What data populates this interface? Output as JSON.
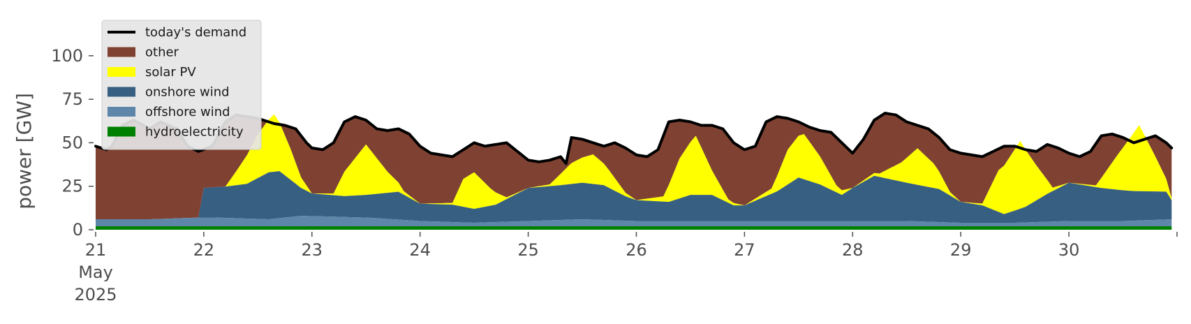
{
  "chart_data": {
    "type": "area",
    "title": "",
    "xlabel": "",
    "ylabel": "power [GW]",
    "x_unit": "days",
    "x_range_days": [
      21,
      31
    ],
    "ylim": [
      0,
      120
    ],
    "yticks": [
      0,
      25,
      50,
      75,
      100
    ],
    "xticks": [
      {
        "day": 21,
        "label": "21",
        "sublabels": [
          "May",
          "2025"
        ]
      },
      {
        "day": 22,
        "label": "22",
        "sublabels": []
      },
      {
        "day": 23,
        "label": "23",
        "sublabels": []
      },
      {
        "day": 24,
        "label": "24",
        "sublabels": []
      },
      {
        "day": 25,
        "label": "25",
        "sublabels": []
      },
      {
        "day": 26,
        "label": "26",
        "sublabels": []
      },
      {
        "day": 27,
        "label": "27",
        "sublabels": []
      },
      {
        "day": 28,
        "label": "28",
        "sublabels": []
      },
      {
        "day": 29,
        "label": "29",
        "sublabels": []
      },
      {
        "day": 30,
        "label": "30",
        "sublabels": []
      }
    ],
    "grid": false,
    "legend_position": "top-left",
    "legend": [
      {
        "name": "today's demand",
        "kind": "line",
        "color": "#000000"
      },
      {
        "name": "other",
        "kind": "patch",
        "color": "#7f4232"
      },
      {
        "name": "solar PV",
        "kind": "patch",
        "color": "#ffff00"
      },
      {
        "name": "onshore wind",
        "kind": "patch",
        "color": "#375f81"
      },
      {
        "name": "offshore wind",
        "kind": "patch",
        "color": "#5e86a8"
      },
      {
        "name": "hydroelectricity",
        "kind": "patch",
        "color": "#008000"
      }
    ],
    "stack_order": [
      "hydroelectricity",
      "offshore wind",
      "onshore wind",
      "solar PV",
      "other"
    ],
    "series": [
      {
        "name": "today's demand",
        "kind": "line",
        "color": "#000000",
        "x": [
          21.0,
          21.1,
          21.15,
          21.25,
          21.35,
          21.5,
          21.6,
          21.75,
          21.85,
          21.95,
          22.08,
          22.2,
          22.3,
          22.5,
          22.65,
          22.75,
          22.85,
          22.95,
          23.0,
          23.1,
          23.2,
          23.3,
          23.4,
          23.5,
          23.6,
          23.7,
          23.8,
          23.9,
          24.0,
          24.1,
          24.2,
          24.3,
          24.4,
          24.5,
          24.6,
          24.7,
          24.8,
          24.9,
          25.0,
          25.1,
          25.2,
          25.3,
          25.35,
          25.4,
          25.5,
          25.6,
          25.7,
          25.8,
          25.9,
          26.0,
          26.1,
          26.2,
          26.3,
          26.4,
          26.5,
          26.6,
          26.7,
          26.8,
          26.9,
          27.0,
          27.1,
          27.2,
          27.3,
          27.4,
          27.5,
          27.6,
          27.7,
          27.8,
          27.9,
          28.0,
          28.1,
          28.2,
          28.3,
          28.4,
          28.5,
          28.6,
          28.7,
          28.8,
          28.9,
          29.0,
          29.1,
          29.2,
          29.3,
          29.4,
          29.5,
          29.6,
          29.7,
          29.8,
          29.9,
          30.0,
          30.1,
          30.2,
          30.3,
          30.4,
          30.5,
          30.6,
          30.7,
          30.8,
          30.9,
          30.95
        ],
        "values": [
          48,
          46,
          48,
          60,
          63,
          58,
          62,
          58,
          48,
          45,
          48,
          62,
          66,
          64,
          61,
          60,
          58,
          50,
          47,
          46,
          50,
          62,
          65,
          63,
          58,
          57,
          58,
          55,
          48,
          44,
          43,
          42,
          46,
          50,
          48,
          49,
          50,
          45,
          40,
          39,
          40,
          42,
          38,
          53,
          52,
          50,
          48,
          50,
          47,
          43,
          42,
          46,
          62,
          63,
          62,
          60,
          60,
          58,
          50,
          46,
          48,
          62,
          65,
          64,
          62,
          59,
          57,
          56,
          50,
          44,
          52,
          63,
          67,
          66,
          62,
          60,
          58,
          53,
          46,
          44,
          43,
          42,
          45,
          48,
          48,
          46,
          45,
          49,
          47,
          44,
          42,
          45,
          54,
          55,
          53,
          50,
          52,
          54,
          50,
          47
        ]
      },
      {
        "name": "hydroelectricity",
        "kind": "area",
        "color": "#008000",
        "x": [
          21.0,
          22.0,
          23.0,
          24.0,
          25.0,
          26.0,
          27.0,
          28.0,
          29.0,
          30.0,
          30.95
        ],
        "values": [
          2,
          2,
          2,
          2,
          2,
          2,
          2,
          2,
          2,
          2,
          2
        ]
      },
      {
        "name": "offshore wind",
        "kind": "area",
        "color": "#5e86a8",
        "x": [
          21.0,
          21.5,
          21.95,
          22.1,
          22.6,
          22.9,
          23.5,
          24.0,
          24.5,
          25.0,
          25.5,
          26.0,
          26.5,
          27.0,
          27.5,
          28.0,
          28.5,
          29.0,
          29.5,
          30.0,
          30.5,
          30.95
        ],
        "values": [
          4,
          4,
          5,
          5,
          4,
          6,
          5,
          3,
          2,
          3,
          4,
          3,
          3,
          3,
          3,
          3,
          3,
          2,
          2,
          3,
          3,
          4
        ]
      },
      {
        "name": "onshore wind",
        "kind": "area",
        "color": "#375f81",
        "x": [
          21.0,
          21.5,
          21.95,
          22.0,
          22.2,
          22.4,
          22.6,
          22.7,
          22.9,
          23.0,
          23.3,
          23.5,
          23.8,
          24.0,
          24.3,
          24.5,
          24.7,
          25.0,
          25.3,
          25.5,
          25.7,
          25.9,
          26.0,
          26.3,
          26.5,
          26.7,
          26.9,
          27.0,
          27.3,
          27.5,
          27.7,
          27.9,
          28.0,
          28.2,
          28.5,
          28.8,
          29.0,
          29.2,
          29.4,
          29.6,
          29.8,
          30.0,
          30.3,
          30.6,
          30.9,
          30.95
        ],
        "values": [
          0,
          0,
          0,
          17,
          18,
          20,
          27,
          27,
          16,
          13,
          12,
          13,
          16,
          10,
          10,
          8,
          10,
          19,
          20,
          21,
          20,
          14,
          12,
          11,
          15,
          15,
          9,
          9,
          17,
          25,
          21,
          15,
          19,
          26,
          22,
          19,
          12,
          10,
          5,
          9,
          16,
          22,
          19,
          17,
          16,
          11
        ]
      },
      {
        "name": "solar PV",
        "kind": "area",
        "color": "#ffff00",
        "x": [
          21.0,
          21.5,
          21.95,
          22.0,
          22.2,
          22.3,
          22.5,
          22.65,
          22.8,
          22.9,
          23.0,
          23.2,
          23.3,
          23.5,
          23.7,
          23.85,
          24.0,
          24.3,
          24.4,
          24.5,
          24.65,
          24.8,
          25.0,
          25.2,
          25.4,
          25.6,
          25.75,
          25.9,
          26.0,
          26.25,
          26.4,
          26.55,
          26.7,
          26.85,
          27.0,
          27.25,
          27.4,
          27.55,
          27.7,
          27.85,
          28.0,
          28.25,
          28.45,
          28.6,
          28.75,
          28.9,
          29.0,
          29.2,
          29.35,
          29.55,
          29.7,
          29.85,
          30.0,
          30.25,
          30.45,
          30.65,
          30.8,
          30.95
        ],
        "values": [
          0,
          0,
          0,
          0,
          0,
          8,
          25,
          33,
          18,
          6,
          0,
          1,
          14,
          29,
          12,
          2,
          0,
          1,
          16,
          21,
          10,
          1,
          0,
          1,
          12,
          17,
          10,
          2,
          0,
          3,
          23,
          34,
          14,
          2,
          0,
          3,
          20,
          26,
          16,
          4,
          0,
          2,
          11,
          21,
          14,
          2,
          0,
          1,
          24,
          39,
          20,
          2,
          0,
          1,
          20,
          38,
          20,
          1
        ]
      },
      {
        "name": "other",
        "kind": "area",
        "color": "#7f4232",
        "note_free": true,
        "x": [
          21.0,
          21.1,
          21.15,
          21.25,
          21.35,
          21.5,
          21.6,
          21.75,
          21.85,
          21.95,
          22.0
        ],
        "values": [
          42,
          40,
          42,
          54,
          57,
          52,
          56,
          52,
          42,
          39,
          24
        ]
      }
    ]
  }
}
